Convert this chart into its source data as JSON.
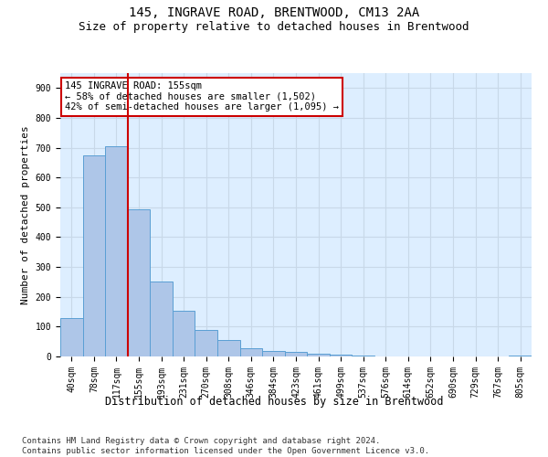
{
  "title": "145, INGRAVE ROAD, BRENTWOOD, CM13 2AA",
  "subtitle": "Size of property relative to detached houses in Brentwood",
  "xlabel": "Distribution of detached houses by size in Brentwood",
  "ylabel": "Number of detached properties",
  "bar_labels": [
    "40sqm",
    "78sqm",
    "117sqm",
    "155sqm",
    "193sqm",
    "231sqm",
    "270sqm",
    "308sqm",
    "346sqm",
    "384sqm",
    "423sqm",
    "461sqm",
    "499sqm",
    "537sqm",
    "576sqm",
    "614sqm",
    "652sqm",
    "690sqm",
    "729sqm",
    "767sqm",
    "805sqm"
  ],
  "bar_values": [
    130,
    675,
    705,
    492,
    252,
    152,
    88,
    55,
    27,
    18,
    14,
    10,
    5,
    2,
    1,
    0,
    0,
    0,
    0,
    0,
    4
  ],
  "bar_color": "#aec6e8",
  "bar_edge_color": "#5a9fd4",
  "highlight_index": 3,
  "highlight_line_color": "#cc0000",
  "annotation_line1": "145 INGRAVE ROAD: 155sqm",
  "annotation_line2": "← 58% of detached houses are smaller (1,502)",
  "annotation_line3": "42% of semi-detached houses are larger (1,095) →",
  "annotation_box_color": "#ffffff",
  "annotation_box_edge": "#cc0000",
  "ylim": [
    0,
    950
  ],
  "yticks": [
    0,
    100,
    200,
    300,
    400,
    500,
    600,
    700,
    800,
    900
  ],
  "grid_color": "#c8d8e8",
  "bg_color": "#ddeeff",
  "footer": "Contains HM Land Registry data © Crown copyright and database right 2024.\nContains public sector information licensed under the Open Government Licence v3.0.",
  "title_fontsize": 10,
  "subtitle_fontsize": 9,
  "xlabel_fontsize": 8.5,
  "ylabel_fontsize": 8,
  "tick_fontsize": 7,
  "annotation_fontsize": 7.5,
  "footer_fontsize": 6.5
}
